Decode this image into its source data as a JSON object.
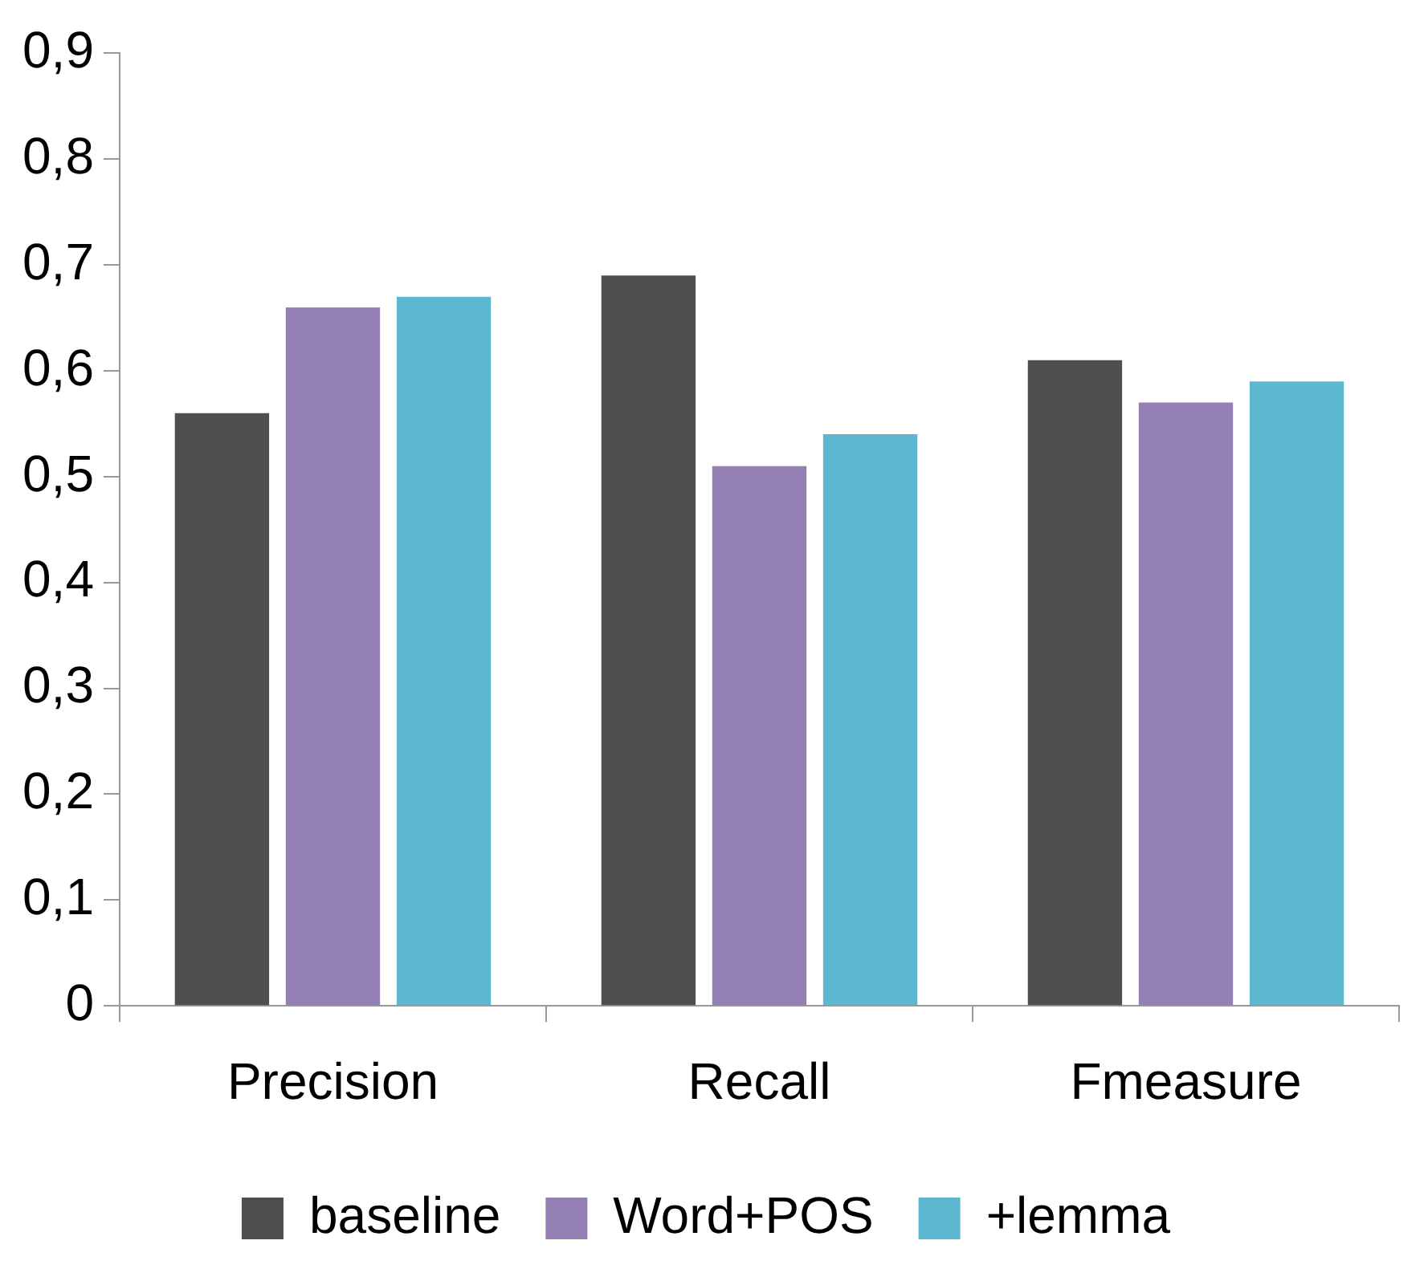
{
  "chart_data": {
    "type": "bar",
    "categories": [
      "Precision",
      "Recall",
      "Fmeasure"
    ],
    "series": [
      {
        "name": "baseline",
        "color": "#4f4f4f",
        "values": [
          0.56,
          0.69,
          0.61
        ]
      },
      {
        "name": "Word+POS",
        "color": "#9580b4",
        "values": [
          0.66,
          0.51,
          0.57
        ]
      },
      {
        "name": "+lemma",
        "color": "#5bb8d0",
        "values": [
          0.67,
          0.54,
          0.59
        ]
      }
    ],
    "ylim": [
      0,
      0.9
    ],
    "yticks": [
      0,
      {
        "value": 0.1,
        "label": "0,1"
      },
      {
        "value": 0.2,
        "label": "0,2"
      },
      {
        "value": 0.3,
        "label": "0,3"
      },
      {
        "value": 0.4,
        "label": "0,4"
      },
      {
        "value": 0.5,
        "label": "0,5"
      },
      {
        "value": 0.6,
        "label": "0,6"
      },
      {
        "value": 0.7,
        "label": "0,7"
      },
      {
        "value": 0.8,
        "label": "0,8"
      },
      {
        "value": 0.9,
        "label": "0,9"
      }
    ],
    "grid": false,
    "legend": "bottom"
  }
}
